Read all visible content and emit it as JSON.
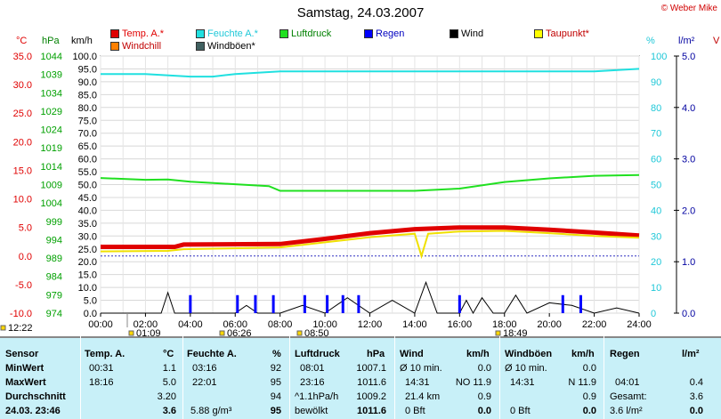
{
  "header": {
    "title": "Samstag, 24.03.2007",
    "credit": "© Weber Mike"
  },
  "legend": [
    {
      "label": "Temp. A.*",
      "color": "#e00000",
      "text_color": "#e00000"
    },
    {
      "label": "Feuchte A.*",
      "color": "#20e0e0",
      "text_color": "#20c8d8"
    },
    {
      "label": "Luftdruck",
      "color": "#20e020",
      "text_color": "#008000"
    },
    {
      "label": "Regen",
      "color": "#0000ff",
      "text_color": "#0000c0"
    },
    {
      "label": "Wind",
      "color": "#000000",
      "text_color": "#000000"
    },
    {
      "label": "Taupunkt*",
      "color": "#ffff00",
      "text_color": "#c00000"
    },
    {
      "label": "Windchill",
      "color": "#ff8000",
      "text_color": "#c00000"
    },
    {
      "label": "Windböen*",
      "color": "#406060",
      "text_color": "#000000"
    }
  ],
  "units": {
    "temp": "°C",
    "pressure": "hPa",
    "wind": "km/h",
    "humidity": "%",
    "rain": "l/m²",
    "right_v": "V"
  },
  "chart_data": {
    "type": "line",
    "x_ticks": [
      "00:00",
      "02:00",
      "04:00",
      "06:00",
      "08:00",
      "10:00",
      "12:00",
      "14:00",
      "16:00",
      "18:00",
      "20:00",
      "22:00",
      "24:00"
    ],
    "temp_ticks": [
      "35.0",
      "30.0",
      "25.0",
      "20.0",
      "15.0",
      "10.0",
      "5.0",
      "0.0",
      "-5.0",
      "-10.0"
    ],
    "pressure_ticks": [
      "1044",
      "1039",
      "1034",
      "1029",
      "1024",
      "1019",
      "1014",
      "1009",
      "1004",
      "999",
      "994",
      "989",
      "984",
      "979",
      "974"
    ],
    "wind_ticks": [
      "100.0",
      "95.0",
      "90.0",
      "85.0",
      "80.0",
      "75.0",
      "70.0",
      "65.0",
      "60.0",
      "55.0",
      "50.0",
      "45.0",
      "40.0",
      "35.0",
      "30.0",
      "25.0",
      "20.0",
      "15.0",
      "10.0",
      "5.0",
      "0.0"
    ],
    "humidity_ticks": [
      "100",
      "90",
      "80",
      "70",
      "60",
      "50",
      "40",
      "30",
      "20",
      "10",
      "0"
    ],
    "rain_ticks": [
      "5.0",
      "4.0",
      "3.0",
      "2.0",
      "1.0",
      "0.0"
    ],
    "ylim_temp": [
      -10,
      35
    ],
    "ylim_pressure": [
      974,
      1044
    ],
    "ylim_humidity": [
      0,
      100
    ],
    "ylim_wind": [
      0,
      100
    ],
    "series": [
      {
        "name": "Temp. A.*",
        "x": [
          0,
          3.3,
          3.7,
          8,
          10,
          12,
          14,
          16,
          18,
          20,
          22,
          24
        ],
        "y": [
          1.6,
          1.6,
          2.0,
          2.1,
          3.0,
          4.0,
          4.7,
          5.0,
          5.0,
          4.6,
          4.1,
          3.6
        ]
      },
      {
        "name": "Taupunkt*",
        "x": [
          0,
          3,
          3.7,
          8,
          10,
          12,
          14,
          14.3,
          14.6,
          16,
          18,
          20,
          22,
          24
        ],
        "y": [
          0.8,
          0.9,
          1.2,
          1.5,
          2.4,
          3.3,
          3.9,
          0.0,
          3.9,
          4.3,
          4.4,
          4.0,
          3.5,
          3.2
        ]
      },
      {
        "name": "Feuchte A.*",
        "x": [
          0,
          2,
          4,
          5,
          6,
          8,
          10,
          12,
          14,
          16,
          18,
          20,
          22,
          24
        ],
        "y": [
          93,
          93,
          92,
          92,
          93,
          94,
          94,
          94,
          94,
          94,
          94,
          94,
          94,
          95
        ]
      },
      {
        "name": "Luftdruck",
        "x": [
          0,
          2,
          3,
          4,
          6,
          7.5,
          8,
          10,
          12,
          14,
          16,
          18,
          20,
          22,
          24
        ],
        "y": [
          1010.8,
          1010.3,
          1010.4,
          1009.8,
          1009.1,
          1008.6,
          1007.3,
          1007.3,
          1007.3,
          1007.3,
          1007.9,
          1009.7,
          1010.7,
          1011.4,
          1011.6
        ]
      },
      {
        "name": "Wind",
        "x": [
          0,
          2.7,
          3,
          3.3,
          4,
          5,
          6,
          6.5,
          7,
          8,
          9,
          10,
          11,
          12,
          13,
          14,
          14.5,
          15,
          16,
          16.3,
          16.6,
          17,
          17.5,
          18,
          18.5,
          19,
          20,
          21,
          22,
          23,
          24
        ],
        "y": [
          0,
          0,
          8,
          0,
          0,
          0,
          0,
          3,
          0,
          0,
          3,
          0,
          6,
          0,
          5,
          0,
          12,
          0,
          0,
          5,
          0,
          6,
          0,
          0,
          7,
          0,
          4,
          3,
          0,
          2,
          0
        ]
      },
      {
        "name": "Regen",
        "x": [
          4,
          6.1,
          6.9,
          7.7,
          9.1,
          10.1,
          10.8,
          11.5,
          16,
          20.6,
          21.4
        ],
        "y": [
          0.35,
          0.35,
          0.35,
          0.35,
          0.35,
          0.35,
          0.35,
          0.35,
          0.35,
          0.35,
          0.35
        ]
      }
    ],
    "markers": [
      "12:22",
      "01:09",
      "06:26",
      "08:50",
      "18:49"
    ]
  },
  "table": {
    "rows": [
      "Sensor",
      "MinWert",
      "MaxWert",
      "Durchschnitt",
      "24.03. 23:46"
    ],
    "temp": {
      "header": "Temp. A.",
      "unit": "°C",
      "min_time": "00:31",
      "min": "1.1",
      "max_time": "18:16",
      "max": "5.0",
      "avg": "3.20",
      "now": "3.6"
    },
    "hum": {
      "header": "Feuchte A.",
      "unit": "%",
      "min_time": "03:16",
      "min": "92",
      "max_time": "22:01",
      "max": "95",
      "avg": "94",
      "abs": "5.88 g/m³",
      "now": "95"
    },
    "press": {
      "header": "Luftdruck",
      "unit": "hPa",
      "min_time": "08:01",
      "min": "1007.1",
      "max_time": "23:16",
      "max": "1011.6",
      "trend": "^1.1hPa/h",
      "avg": "1009.2",
      "forecast": "bewölkt",
      "now": "1011.6"
    },
    "wind": {
      "header": "Wind",
      "unit": "km/h",
      "avg_label": "Ø 10 min.",
      "avg": "0.0",
      "max_time": "14:31",
      "max_dir": "NO 11.9",
      "km": "21.4 km",
      "mean": "0.9",
      "bft": "0 Bft",
      "now": "0.0"
    },
    "gust": {
      "header": "Windböen",
      "unit": "km/h",
      "avg_label": "Ø 10 min.",
      "avg": "0.0",
      "max_time": "14:31",
      "max_dir": "N 11.9",
      "mean": "0.9",
      "bft": "0 Bft",
      "now": "0.0"
    },
    "rain": {
      "header": "Regen",
      "unit": "l/m²",
      "time": "04:01",
      "val": "0.4",
      "total_label": "Gesamt:",
      "total": "3.6",
      "now_text": "3.6 l/m²",
      "now": "0.0"
    }
  }
}
